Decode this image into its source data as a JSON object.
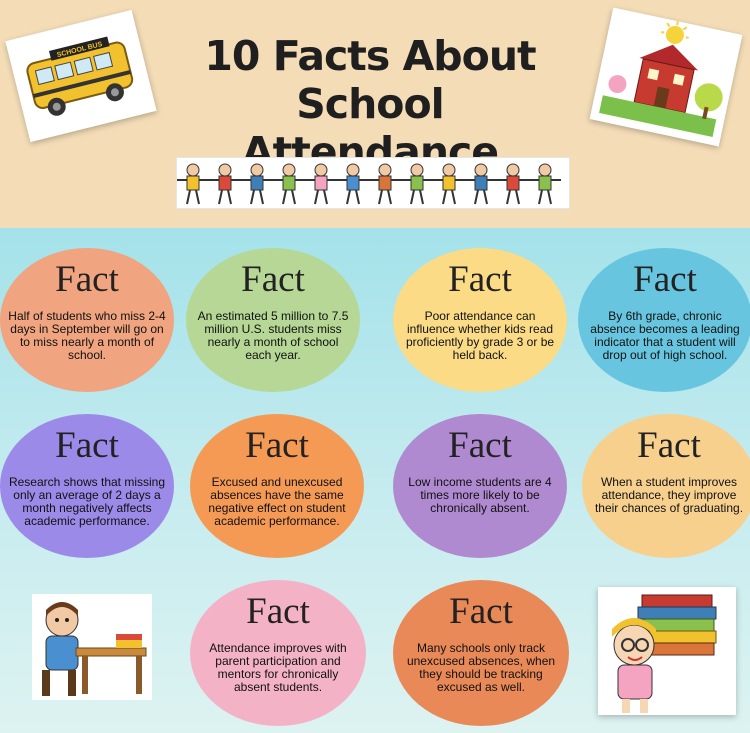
{
  "title": {
    "line1": "10 Facts About",
    "line2": "School Attendance"
  },
  "bus_sign": "SCHOOL BUS",
  "facts": [
    {
      "heading": "Fact",
      "text": "Half of students who miss 2-4 days in September will go on to miss nearly a month of school.",
      "color": "#f0a47f"
    },
    {
      "heading": "Fact",
      "text": "An estimated 5 million to 7.5 million U.S. students miss nearly a month of school each year.",
      "color": "#b6d795"
    },
    {
      "heading": "Fact",
      "text": "Poor attendance can influence whether kids read proficiently by grade 3 or be held back.",
      "color": "#fbdb86"
    },
    {
      "heading": "Fact",
      "text": "By 6th grade, chronic absence becomes a leading indicator that a student will drop out of high school.",
      "color": "#68c5df"
    },
    {
      "heading": "Fact",
      "text": "Research shows that missing only an average of 2 days a month negatively affects academic performance.",
      "color": "#9b8ae8"
    },
    {
      "heading": "Fact",
      "text": "Excused and unexcused absences have the same negative effect on student academic performance.",
      "color": "#f59a55"
    },
    {
      "heading": "Fact",
      "text": "Low income students are 4 times more likely to be chronically absent.",
      "color": "#b08ad0"
    },
    {
      "heading": "Fact",
      "text": "When a student improves attendance, they improve their chances of graduating.",
      "color": "#f7d08e"
    },
    {
      "heading": "Fact",
      "text": "Attendance improves with parent participation and mentors for chronically absent students.",
      "color": "#f4b2c6"
    },
    {
      "heading": "Fact",
      "text": "Many schools only track unexcused absences, when they should be tracking excused as well.",
      "color": "#e88957"
    }
  ],
  "illustrations": [
    "school-bus-icon",
    "school-house-icon",
    "kids-holding-hands-icon",
    "student-at-desk-icon",
    "girl-with-books-icon"
  ]
}
